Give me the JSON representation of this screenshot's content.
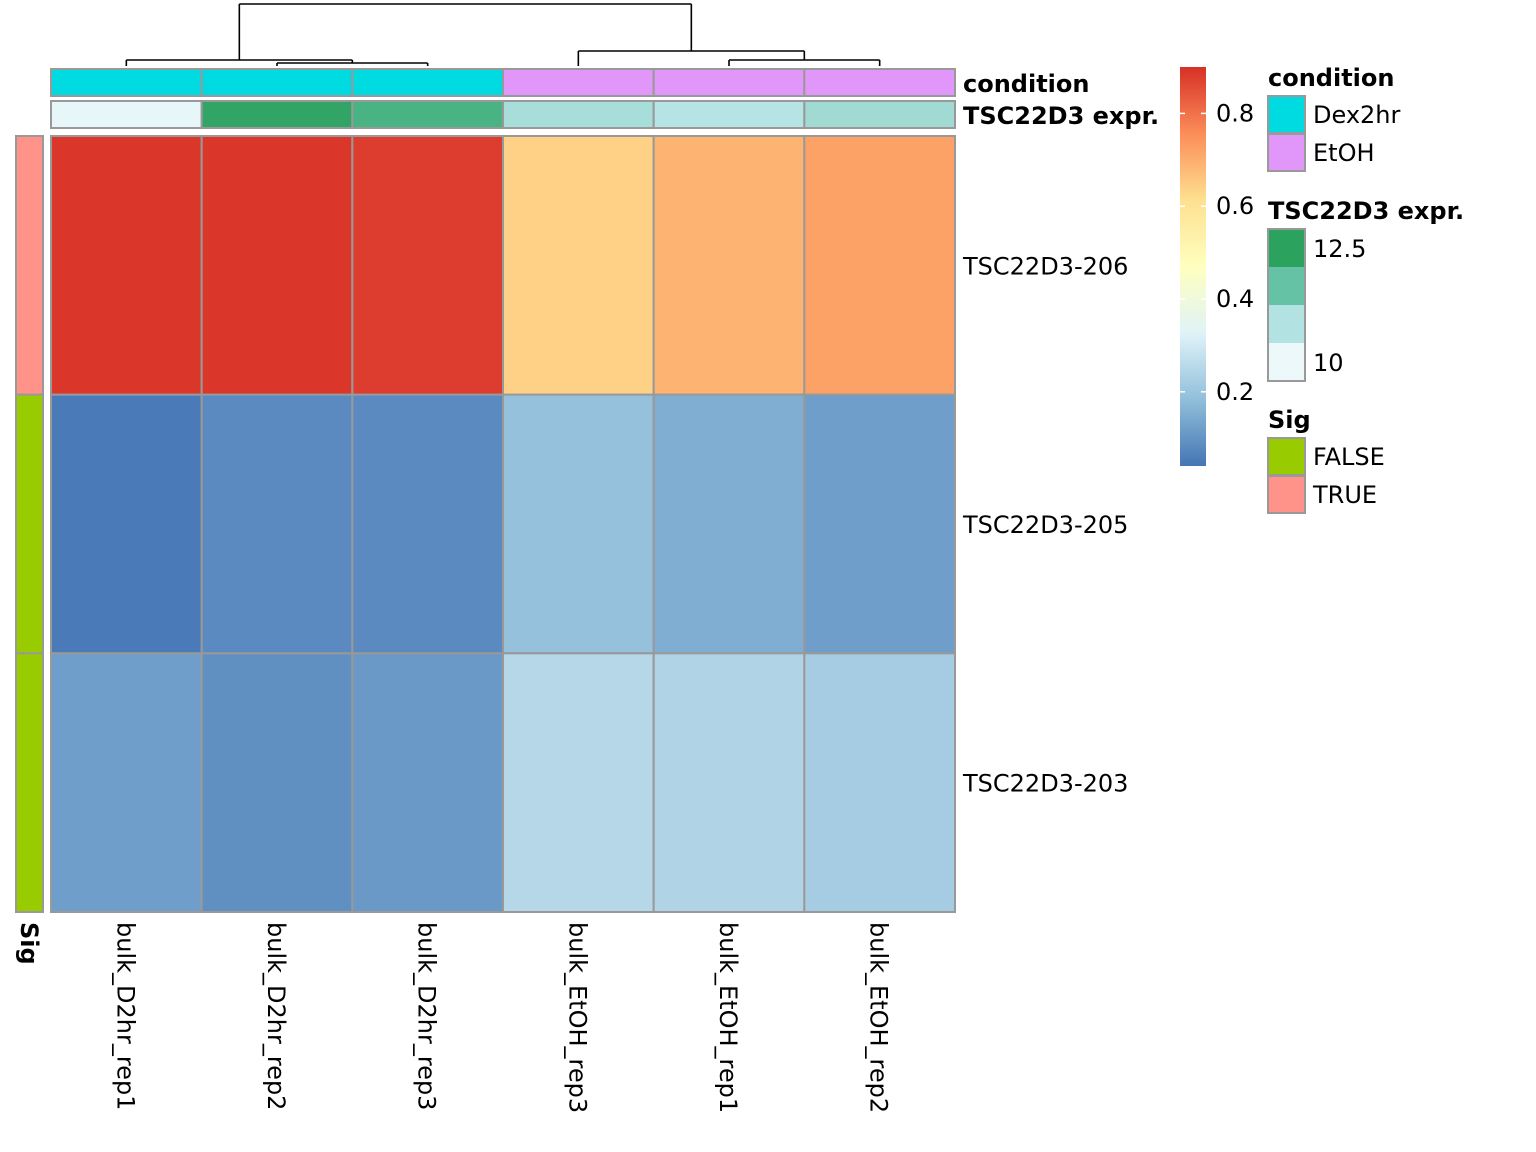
{
  "chart_data": {
    "type": "heatmap",
    "columns": [
      "bulk_D2hr_rep1",
      "bulk_D2hr_rep2",
      "bulk_D2hr_rep3",
      "bulk_EtOH_rep3",
      "bulk_EtOH_rep1",
      "bulk_EtOH_rep2"
    ],
    "rows": [
      "TSC22D3-206",
      "TSC22D3-205",
      "TSC22D3-203"
    ],
    "values": [
      [
        0.89,
        0.89,
        0.88,
        0.64,
        0.69,
        0.72
      ],
      [
        0.05,
        0.08,
        0.08,
        0.19,
        0.15,
        0.12
      ],
      [
        0.12,
        0.09,
        0.11,
        0.25,
        0.24,
        0.22
      ]
    ],
    "color_scale": {
      "ticks": [
        0.2,
        0.4,
        0.6,
        0.8
      ],
      "range": [
        0.04,
        0.9
      ],
      "colors": [
        "#4575b4",
        "#91bfdb",
        "#e0f3f8",
        "#ffffbf",
        "#fee090",
        "#fc8d59",
        "#d73027"
      ]
    },
    "column_annotations": [
      {
        "name": "condition",
        "values": [
          "Dex2hr",
          "Dex2hr",
          "Dex2hr",
          "EtOH",
          "EtOH",
          "EtOH"
        ],
        "colors": {
          "Dex2hr": "#00dbe1",
          "EtOH": "#e097f9"
        }
      },
      {
        "name": "TSC22D3 expr.",
        "values": [
          9.9,
          12.6,
          12.2,
          10.9,
          10.7,
          11.0
        ],
        "legend_labels": [
          "12.5",
          "10"
        ],
        "legend_colors": [
          "#2ca25f",
          "#66c2a4",
          "#b2e2e2",
          "#edf8fb"
        ]
      }
    ],
    "row_annotations": [
      {
        "name": "Sig",
        "values": [
          "TRUE",
          "FALSE",
          "FALSE"
        ],
        "colors": {
          "FALSE": "#99cc00",
          "TRUE": "#ff9289"
        }
      }
    ],
    "column_dendrogram": true,
    "legends": [
      {
        "title": "condition",
        "labels": [
          "Dex2hr",
          "EtOH"
        ],
        "colors": [
          "#00dbe1",
          "#e097f9"
        ]
      },
      {
        "title": "TSC22D3 expr.",
        "labels": [
          "12.5",
          "10"
        ]
      },
      {
        "title": "Sig",
        "labels": [
          "FALSE",
          "TRUE"
        ],
        "colors": [
          "#99cc00",
          "#ff9289"
        ]
      }
    ]
  }
}
